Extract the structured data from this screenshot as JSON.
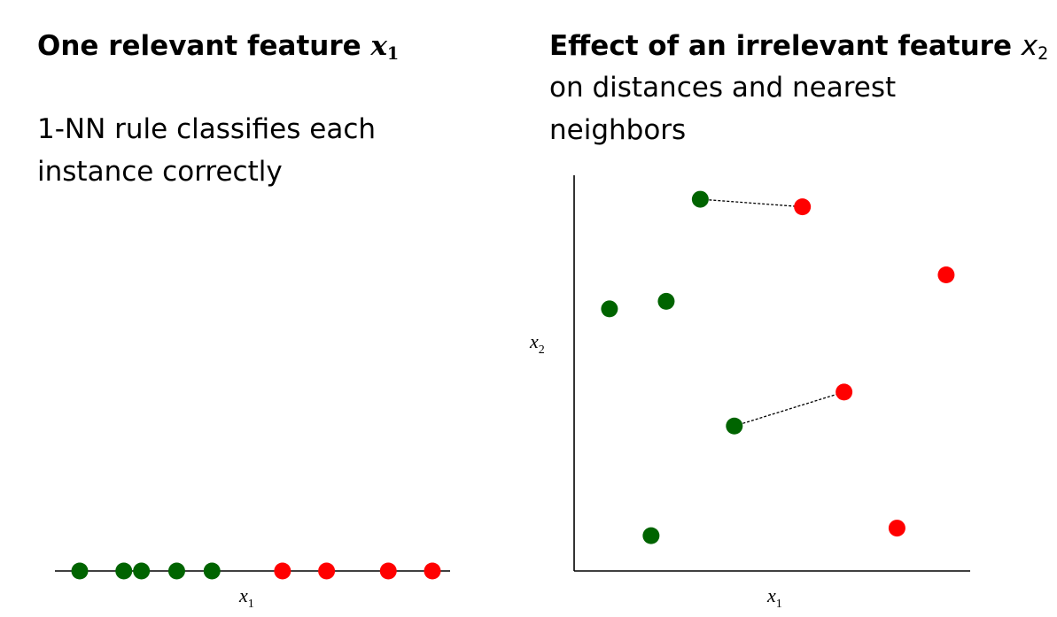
{
  "left": {
    "title_text": "One relevant feature ",
    "title_var": "x",
    "title_sub": "1",
    "body": "1-NN rule classifies each instance correctly"
  },
  "right": {
    "title_text": "Effect of an irrelevant feature ",
    "title_var": "x",
    "title_sub": "2",
    "body": "on distances and nearest neighbors"
  },
  "colors": {
    "green": "#006400",
    "red": "#ff0000",
    "axis": "#000000"
  },
  "chart_data": [
    {
      "type": "scatter",
      "title": "",
      "xlabel": "x1",
      "ylabel": "",
      "series": [
        {
          "name": "",
          "color": "green",
          "x": [
            1,
            2,
            2.4,
            3.2,
            4
          ]
        },
        {
          "name": "",
          "color": "red",
          "x": [
            5.6,
            6.6,
            8,
            9
          ]
        }
      ]
    },
    {
      "type": "scatter",
      "title": "",
      "xlabel": "x1",
      "ylabel": "x2",
      "xlim": [
        0,
        10
      ],
      "ylim": [
        0,
        10
      ],
      "series": [
        {
          "name": "",
          "color": "green",
          "points": [
            [
              3.1,
              9.6
            ],
            [
              0.7,
              6.7
            ],
            [
              2.2,
              6.9
            ],
            [
              4.0,
              3.6
            ],
            [
              1.8,
              0.7
            ]
          ]
        },
        {
          "name": "",
          "color": "red",
          "points": [
            [
              5.8,
              9.4
            ],
            [
              9.6,
              7.6
            ],
            [
              6.9,
              4.5
            ],
            [
              8.3,
              0.9
            ]
          ]
        }
      ],
      "nearest_neighbor_links": [
        {
          "from": [
            3.1,
            9.6
          ],
          "to": [
            5.8,
            9.4
          ]
        },
        {
          "from": [
            4.0,
            3.6
          ],
          "to": [
            6.9,
            4.5
          ]
        }
      ]
    }
  ]
}
